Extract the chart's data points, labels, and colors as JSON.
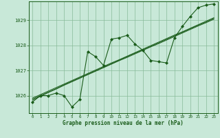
{
  "title": "Graphe pression niveau de la mer (hPa)",
  "background_color": "#c8e8d8",
  "plot_bg_color": "#c8e8d8",
  "grid_color": "#88bb99",
  "line_color": "#1a5c1a",
  "marker_color": "#1a5c1a",
  "xlim": [
    -0.5,
    23.5
  ],
  "ylim": [
    1025.3,
    1029.75
  ],
  "yticks": [
    1026,
    1027,
    1028,
    1029
  ],
  "xticks": [
    0,
    1,
    2,
    3,
    4,
    5,
    6,
    7,
    8,
    9,
    10,
    11,
    12,
    13,
    14,
    15,
    16,
    17,
    18,
    19,
    20,
    21,
    22,
    23
  ],
  "main_series": [
    1025.75,
    1026.0,
    1026.0,
    1026.1,
    1026.0,
    1025.55,
    1025.85,
    1027.75,
    1027.55,
    1027.2,
    1028.25,
    1028.3,
    1028.4,
    1028.05,
    1027.8,
    1027.4,
    1027.35,
    1027.3,
    1028.3,
    1028.75,
    1029.15,
    1029.5,
    1029.6,
    1029.65
  ],
  "trend_line1": [
    1025.82,
    1025.97,
    1026.12,
    1026.26,
    1026.41,
    1026.55,
    1026.69,
    1026.83,
    1026.97,
    1027.11,
    1027.25,
    1027.39,
    1027.52,
    1027.66,
    1027.8,
    1027.94,
    1028.07,
    1028.21,
    1028.35,
    1028.49,
    1028.63,
    1028.77,
    1028.9,
    1029.04
  ],
  "trend_line2": [
    1025.86,
    1026.0,
    1026.14,
    1026.28,
    1026.43,
    1026.57,
    1026.71,
    1026.85,
    1026.99,
    1027.13,
    1027.27,
    1027.41,
    1027.55,
    1027.69,
    1027.82,
    1027.96,
    1028.1,
    1028.24,
    1028.38,
    1028.52,
    1028.66,
    1028.8,
    1028.93,
    1029.07
  ],
  "trend_line3": [
    1025.9,
    1026.04,
    1026.18,
    1026.32,
    1026.46,
    1026.6,
    1026.74,
    1026.88,
    1027.02,
    1027.16,
    1027.3,
    1027.43,
    1027.57,
    1027.71,
    1027.85,
    1027.99,
    1028.13,
    1028.27,
    1028.41,
    1028.54,
    1028.68,
    1028.82,
    1028.96,
    1029.1
  ]
}
